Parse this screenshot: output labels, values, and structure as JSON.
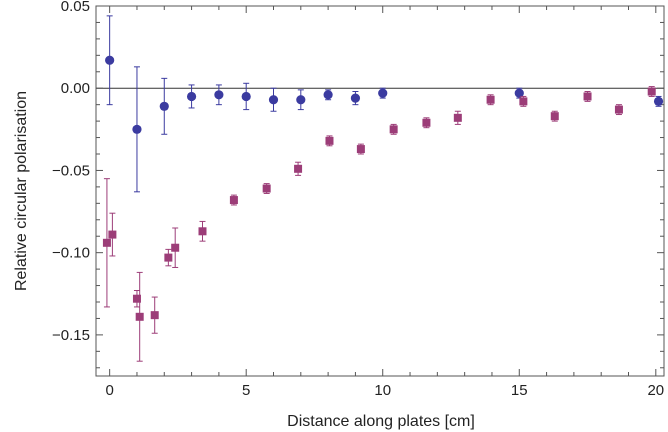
{
  "chart_data": {
    "type": "scatter",
    "title": "",
    "xlabel": "Distance along plates [cm]",
    "ylabel": "Relative circular polarisation",
    "xlim": [
      -0.5,
      20.3
    ],
    "ylim": [
      -0.175,
      0.05
    ],
    "x_ticks": [
      0,
      5,
      10,
      15,
      20
    ],
    "x_tick_labels": [
      "0",
      "5",
      "10",
      "15",
      "20"
    ],
    "y_ticks": [
      -0.15,
      -0.1,
      -0.05,
      0.0,
      0.05
    ],
    "y_tick_labels": [
      "−0.15",
      "−0.10",
      "−0.05",
      "0.00",
      "0.05"
    ],
    "zero_line": 0,
    "grid": false,
    "legend": "none",
    "series": [
      {
        "marker": "circle",
        "color": "#3b3ba0",
        "points": [
          {
            "x": 0.0,
            "y": 0.017,
            "err": 0.027
          },
          {
            "x": 1.0,
            "y": -0.025,
            "err": 0.038
          },
          {
            "x": 2.0,
            "y": -0.011,
            "err": 0.017
          },
          {
            "x": 3.0,
            "y": -0.005,
            "err": 0.007
          },
          {
            "x": 4.0,
            "y": -0.004,
            "err": 0.006
          },
          {
            "x": 5.0,
            "y": -0.005,
            "err": 0.008
          },
          {
            "x": 6.0,
            "y": -0.007,
            "err": 0.007
          },
          {
            "x": 7.0,
            "y": -0.007,
            "err": 0.006
          },
          {
            "x": 8.0,
            "y": -0.004,
            "err": 0.003
          },
          {
            "x": 9.0,
            "y": -0.006,
            "err": 0.004
          },
          {
            "x": 10.0,
            "y": -0.003,
            "err": 0.003
          },
          {
            "x": 15.0,
            "y": -0.003,
            "err": 0.003
          },
          {
            "x": 20.1,
            "y": -0.008,
            "err": 0.003
          }
        ]
      },
      {
        "marker": "square",
        "color": "#9c3d78",
        "points": [
          {
            "x": -0.1,
            "y": -0.094,
            "err": 0.039
          },
          {
            "x": 0.1,
            "y": -0.089,
            "err": 0.013
          },
          {
            "x": 1.0,
            "y": -0.128,
            "err": 0.005
          },
          {
            "x": 1.1,
            "y": -0.139,
            "err": 0.027
          },
          {
            "x": 1.65,
            "y": -0.138,
            "err": 0.011
          },
          {
            "x": 2.15,
            "y": -0.103,
            "err": 0.005
          },
          {
            "x": 2.4,
            "y": -0.097,
            "err": 0.012
          },
          {
            "x": 3.4,
            "y": -0.087,
            "err": 0.006
          },
          {
            "x": 4.55,
            "y": -0.068,
            "err": 0.003
          },
          {
            "x": 5.75,
            "y": -0.061,
            "err": 0.003
          },
          {
            "x": 6.9,
            "y": -0.049,
            "err": 0.004
          },
          {
            "x": 8.05,
            "y": -0.032,
            "err": 0.003
          },
          {
            "x": 9.2,
            "y": -0.037,
            "err": 0.003
          },
          {
            "x": 10.4,
            "y": -0.025,
            "err": 0.003
          },
          {
            "x": 11.6,
            "y": -0.021,
            "err": 0.003
          },
          {
            "x": 12.75,
            "y": -0.018,
            "err": 0.004
          },
          {
            "x": 13.95,
            "y": -0.007,
            "err": 0.003
          },
          {
            "x": 15.15,
            "y": -0.008,
            "err": 0.003
          },
          {
            "x": 16.3,
            "y": -0.017,
            "err": 0.003
          },
          {
            "x": 17.5,
            "y": -0.005,
            "err": 0.003
          },
          {
            "x": 18.65,
            "y": -0.013,
            "err": 0.003
          },
          {
            "x": 19.85,
            "y": -0.002,
            "err": 0.003
          }
        ]
      }
    ]
  }
}
